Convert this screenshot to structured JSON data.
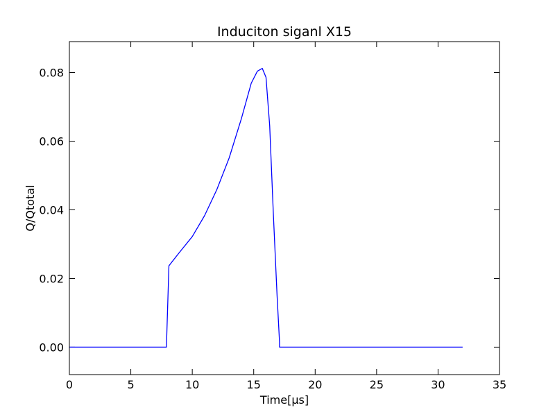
{
  "chart_data": {
    "type": "line",
    "title": "Induciton siganl X15",
    "xlabel": "Time[μs]",
    "ylabel": "Q/Qtotal",
    "xlim": [
      0,
      35
    ],
    "ylim": [
      -0.008,
      0.089
    ],
    "grid": false,
    "xticks": [
      0,
      5,
      10,
      15,
      20,
      25,
      30,
      35
    ],
    "yticks": [
      0.0,
      0.02,
      0.04,
      0.06,
      0.08
    ],
    "x_tick_labels": [
      "0",
      "5",
      "10",
      "15",
      "20",
      "25",
      "30",
      "35"
    ],
    "y_tick_labels": [
      "0.00",
      "0.02",
      "0.04",
      "0.06",
      "0.08"
    ],
    "series": [
      {
        "color": "#0000ff",
        "x": [
          0,
          7.9,
          7.9,
          8.1,
          9,
          10,
          11,
          12,
          13,
          14,
          14.8,
          15.3,
          15.7,
          16.0,
          16.3,
          16.6,
          16.9,
          17.1,
          17.1,
          20,
          25,
          30,
          32
        ],
        "y": [
          0,
          0,
          0.0005,
          0.0237,
          0.0278,
          0.0322,
          0.0383,
          0.0459,
          0.0551,
          0.0666,
          0.0769,
          0.0804,
          0.0812,
          0.0786,
          0.0645,
          0.0386,
          0.0151,
          0.0015,
          0,
          0,
          0,
          0,
          0
        ]
      }
    ]
  }
}
